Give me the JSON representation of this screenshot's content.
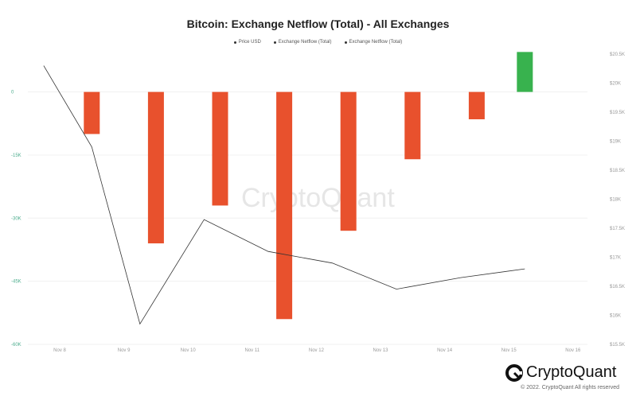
{
  "chart_data": {
    "type": "bar",
    "title": "Bitcoin: Exchange Netflow (Total) - All Exchanges",
    "legend": [
      "Price USD",
      "Exchange Netflow (Total)",
      "Exchange Netflow (Total)"
    ],
    "x_ticks": [
      "Nov 8",
      "Nov 9",
      "Nov 10",
      "Nov 11",
      "Nov 12",
      "Nov 13",
      "Nov 14",
      "Nov 15",
      "Nov 16"
    ],
    "y_left_ticks": [
      "0",
      "-15K",
      "-30K",
      "-45K",
      "-60K"
    ],
    "y_left_range": [
      -60000,
      9000
    ],
    "y_right_ticks": [
      "$20.5K",
      "$20K",
      "$19.5K",
      "$19K",
      "$18.5K",
      "$18K",
      "$17.5K",
      "$17K",
      "$16.5K",
      "$16K",
      "$15.5K"
    ],
    "y_right_range": [
      15500,
      20500
    ],
    "series": [
      {
        "name": "Exchange Netflow (Total)",
        "kind": "bar",
        "x": [
          "Nov 8 12:00",
          "Nov 9 12:00",
          "Nov 10 12:00",
          "Nov 11 12:00",
          "Nov 12 12:00",
          "Nov 13 12:00",
          "Nov 14 12:00",
          "Nov 15 06:00"
        ],
        "values": [
          -10000,
          -36000,
          -27000,
          -54000,
          -33000,
          -16000,
          -6500,
          9500
        ],
        "colors": [
          "#e8512d",
          "#e8512d",
          "#e8512d",
          "#e8512d",
          "#e8512d",
          "#e8512d",
          "#e8512d",
          "#38b24e"
        ]
      },
      {
        "name": "Price USD",
        "kind": "line",
        "color": "#333333",
        "x": [
          "Nov 7 18:00",
          "Nov 8 12:00",
          "Nov 9 06:00",
          "Nov 10 06:00",
          "Nov 11 06:00",
          "Nov 12 06:00",
          "Nov 13 06:00",
          "Nov 14 06:00",
          "Nov 15 06:00"
        ],
        "values": [
          20300,
          18900,
          15850,
          17650,
          17100,
          16900,
          16450,
          16650,
          16800
        ]
      }
    ]
  },
  "watermark": "CryptoQuant",
  "brand": {
    "name": "CryptoQuant",
    "copyright": "© 2022. CryptoQuant All rights reserved"
  }
}
